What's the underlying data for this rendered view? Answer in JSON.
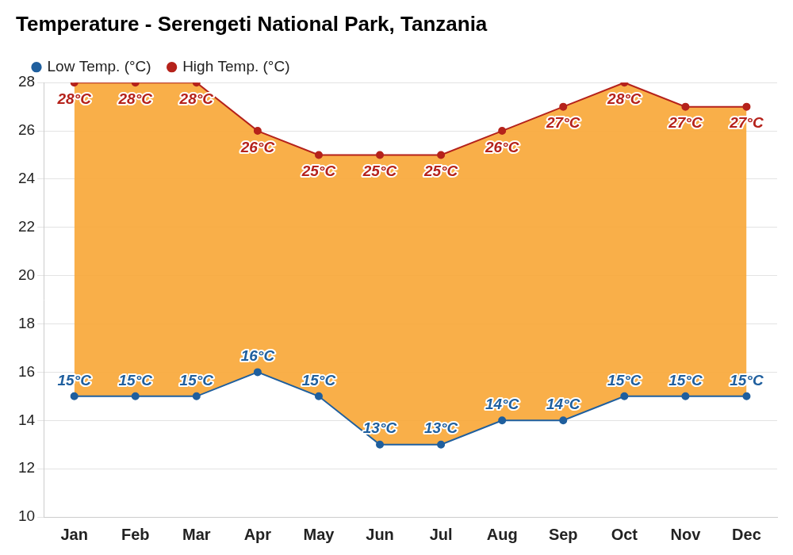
{
  "chart_data": {
    "type": "line",
    "title": "Temperature - Serengeti National Park, Tanzania",
    "categories": [
      "Jan",
      "Feb",
      "Mar",
      "Apr",
      "May",
      "Jun",
      "Jul",
      "Aug",
      "Sep",
      "Oct",
      "Nov",
      "Dec"
    ],
    "series": [
      {
        "name": "Low Temp. (°C)",
        "color": "#1f5f9e",
        "marker": "circle",
        "values": [
          15,
          15,
          15,
          16,
          15,
          13,
          13,
          14,
          14,
          15,
          15,
          15
        ],
        "value_labels": [
          "15°C",
          "15°C",
          "15°C",
          "16°C",
          "15°C",
          "13°C",
          "13°C",
          "14°C",
          "14°C",
          "15°C",
          "15°C",
          "15°C"
        ]
      },
      {
        "name": "High Temp. (°C)",
        "color": "#b5221b",
        "marker": "circle",
        "values": [
          28,
          28,
          28,
          26,
          25,
          25,
          25,
          26,
          27,
          28,
          27,
          27
        ],
        "value_labels": [
          "28°C",
          "28°C",
          "28°C",
          "26°C",
          "25°C",
          "25°C",
          "25°C",
          "26°C",
          "27°C",
          "28°C",
          "27°C",
          "27°C"
        ]
      }
    ],
    "ylim": [
      10,
      28
    ],
    "yticks": [
      10,
      12,
      14,
      16,
      18,
      20,
      22,
      24,
      26,
      28
    ],
    "grid": true,
    "legend": "top-left",
    "data_labels": true
  }
}
